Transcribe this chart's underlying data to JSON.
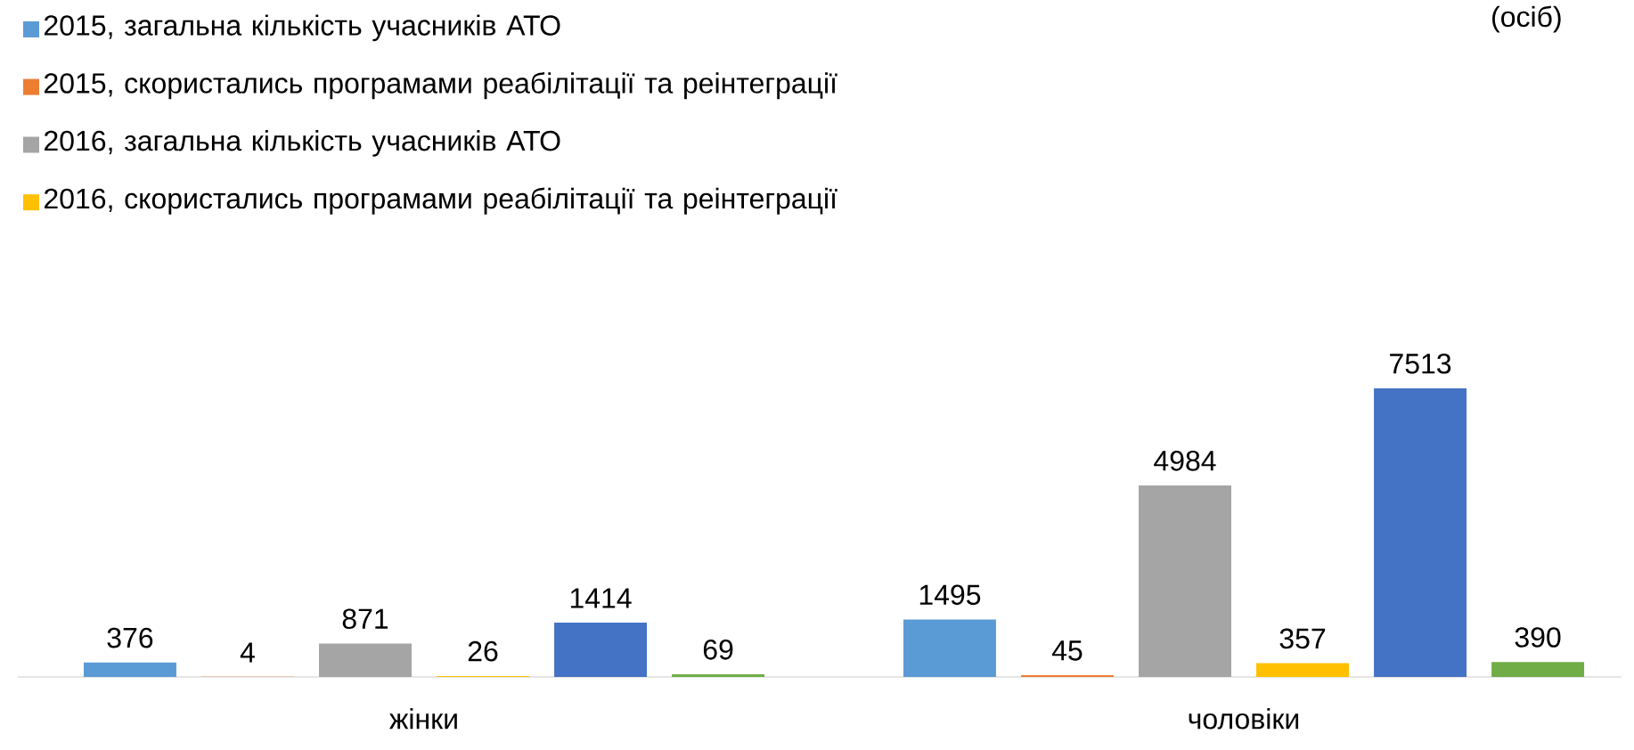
{
  "chart_data": {
    "type": "bar",
    "categories": [
      "жінки",
      "чоловіки"
    ],
    "series": [
      {
        "name": "2015, загальна кількість учасників АТО",
        "color": "#5b9bd5",
        "values": [
          376,
          1495
        ]
      },
      {
        "name": "2015, скористались програмами реабілітації та реінтеграції",
        "color": "#ed7d31",
        "values": [
          4,
          45
        ]
      },
      {
        "name": "2016, загальна кількість учасників АТО",
        "color": "#a5a5a5",
        "values": [
          871,
          4984
        ]
      },
      {
        "name": "2016, скористались програмами реабілітації та реінтеграції",
        "color": "#ffc000",
        "values": [
          26,
          357
        ]
      },
      {
        "color": "#4472c4",
        "values": [
          1414,
          7513
        ]
      },
      {
        "color": "#70ad47",
        "values": [
          69,
          390
        ]
      }
    ],
    "data_labels": true,
    "legend": "top left",
    "annotations": [
      "(осіб)"
    ]
  }
}
